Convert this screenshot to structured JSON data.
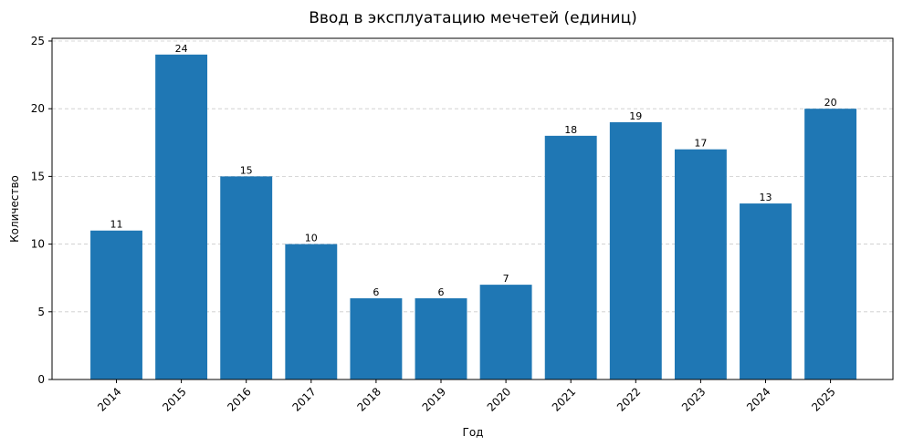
{
  "chart_data": {
    "type": "bar",
    "title": "Ввод в эксплуатацию мечетей (единиц)",
    "xlabel": "Год",
    "ylabel": "Количество",
    "categories": [
      "2014",
      "2015",
      "2016",
      "2017",
      "2018",
      "2019",
      "2020",
      "2021",
      "2022",
      "2023",
      "2024",
      "2025"
    ],
    "values": [
      11,
      24,
      15,
      10,
      6,
      6,
      7,
      18,
      19,
      17,
      13,
      20
    ],
    "ylim": [
      0,
      25.2
    ],
    "yticks": [
      0,
      5,
      10,
      15,
      20,
      25
    ],
    "grid": true,
    "bar_color": "#1f77b4"
  }
}
